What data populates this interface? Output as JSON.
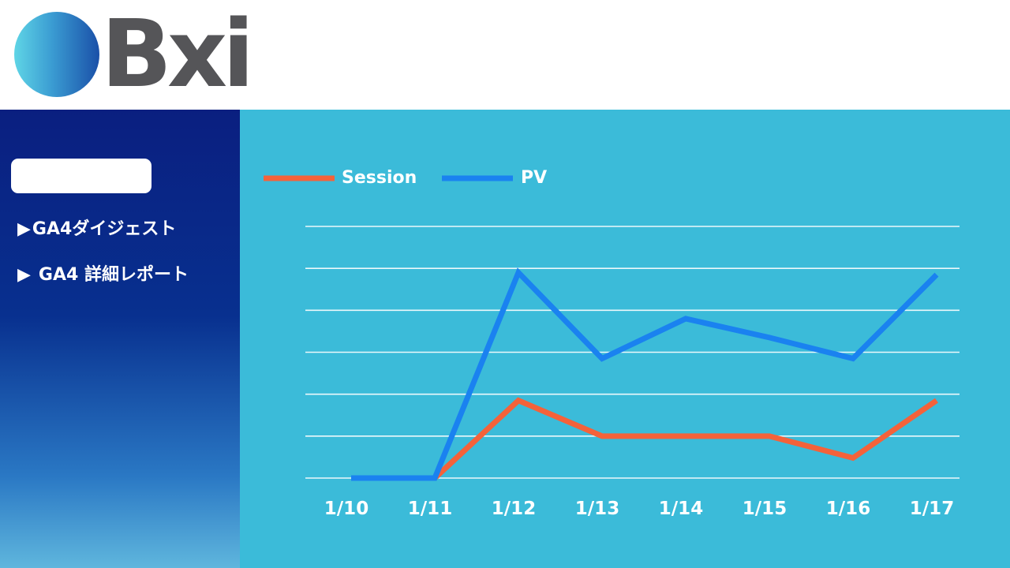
{
  "header": {
    "logo_text": "Bxi"
  },
  "sidebar": {
    "items": [
      {
        "arrow": "▶",
        "label": "GA4ダイジェスト"
      },
      {
        "arrow": "▶",
        "label": "GA4 詳細レポート"
      }
    ]
  },
  "colors": {
    "session": "#f4623a",
    "pv": "#1a82f0",
    "main_bg": "#3bbbd9",
    "sidebar_top": "#0a1f80",
    "logo_text": "#555558"
  },
  "chart_data": {
    "type": "line",
    "categories": [
      "1/10",
      "1/11",
      "1/12",
      "1/13",
      "1/14",
      "1/15",
      "1/16",
      "1/17"
    ],
    "series": [
      {
        "name": "Session",
        "color": "#f4623a",
        "values": [
          null,
          0,
          1.85,
          1.0,
          1.0,
          1.0,
          0.48,
          1.85
        ]
      },
      {
        "name": "PV",
        "color": "#1a82f0",
        "values": [
          0,
          0,
          4.9,
          2.85,
          3.8,
          3.35,
          2.85,
          4.85
        ]
      }
    ],
    "ylim": [
      0,
      6
    ],
    "grid": true,
    "legend": "top-left"
  }
}
